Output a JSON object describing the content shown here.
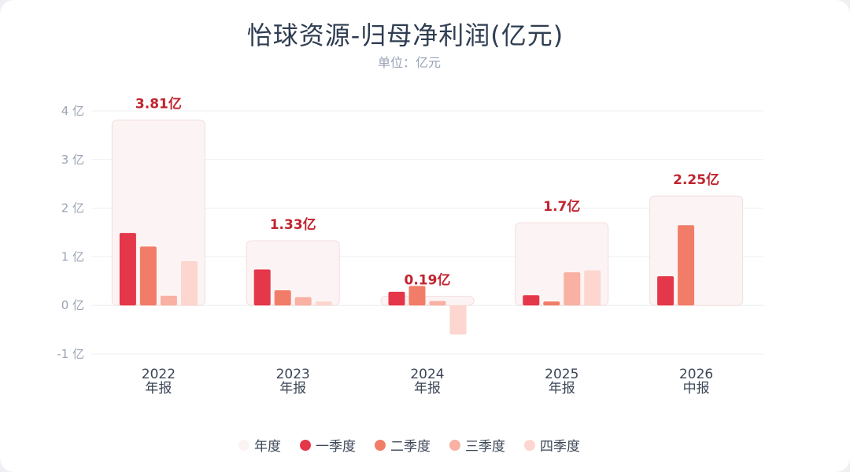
{
  "title": "怡球资源-归母净利润(亿元)",
  "subtitle": "单位：亿元",
  "colors": {
    "annual_bg": "#fcf4f4",
    "annual_border": "#f5dcdc",
    "q1": "#e5374a",
    "q2": "#f17d69",
    "q3": "#f8b1a3",
    "q4": "#fcd6cf",
    "total_label": "#c0242f",
    "grid": "#eceff3",
    "axis_text": "#9aa4b5",
    "category_text": "#3c4657"
  },
  "chart_data": {
    "type": "bar",
    "y_ticks": [
      "4 亿",
      "3 亿",
      "2 亿",
      "1 亿",
      "0 亿",
      "-1 亿"
    ],
    "y_tick_values": [
      4,
      3,
      2,
      1,
      0,
      -1
    ],
    "ylim": [
      -1,
      4
    ],
    "grid": true,
    "legend_position": "bottom",
    "categories": [
      {
        "year": "2022",
        "period": "年报"
      },
      {
        "year": "2023",
        "period": "年报"
      },
      {
        "year": "2024",
        "period": "年报"
      },
      {
        "year": "2025",
        "period": "年报"
      },
      {
        "year": "2026",
        "period": "中报"
      }
    ],
    "annual": {
      "name": "年度",
      "values": [
        3.81,
        1.33,
        0.19,
        1.7,
        2.25
      ],
      "labels": [
        "3.81亿",
        "1.33亿",
        "0.19亿",
        "1.7亿",
        "2.25亿"
      ]
    },
    "series": [
      {
        "name": "一季度",
        "values": [
          1.49,
          0.74,
          0.28,
          0.21,
          0.6
        ]
      },
      {
        "name": "二季度",
        "values": [
          1.21,
          0.31,
          0.4,
          0.08,
          1.65
        ]
      },
      {
        "name": "三季度",
        "values": [
          0.2,
          0.17,
          0.09,
          0.68,
          0
        ]
      },
      {
        "name": "四季度",
        "values": [
          0.91,
          0.08,
          -0.6,
          0.72,
          0
        ]
      }
    ]
  },
  "legend": [
    {
      "name": "年度",
      "color_key": "annual_bg"
    },
    {
      "name": "一季度",
      "color_key": "q1"
    },
    {
      "name": "二季度",
      "color_key": "q2"
    },
    {
      "name": "三季度",
      "color_key": "q3"
    },
    {
      "name": "四季度",
      "color_key": "q4"
    }
  ]
}
